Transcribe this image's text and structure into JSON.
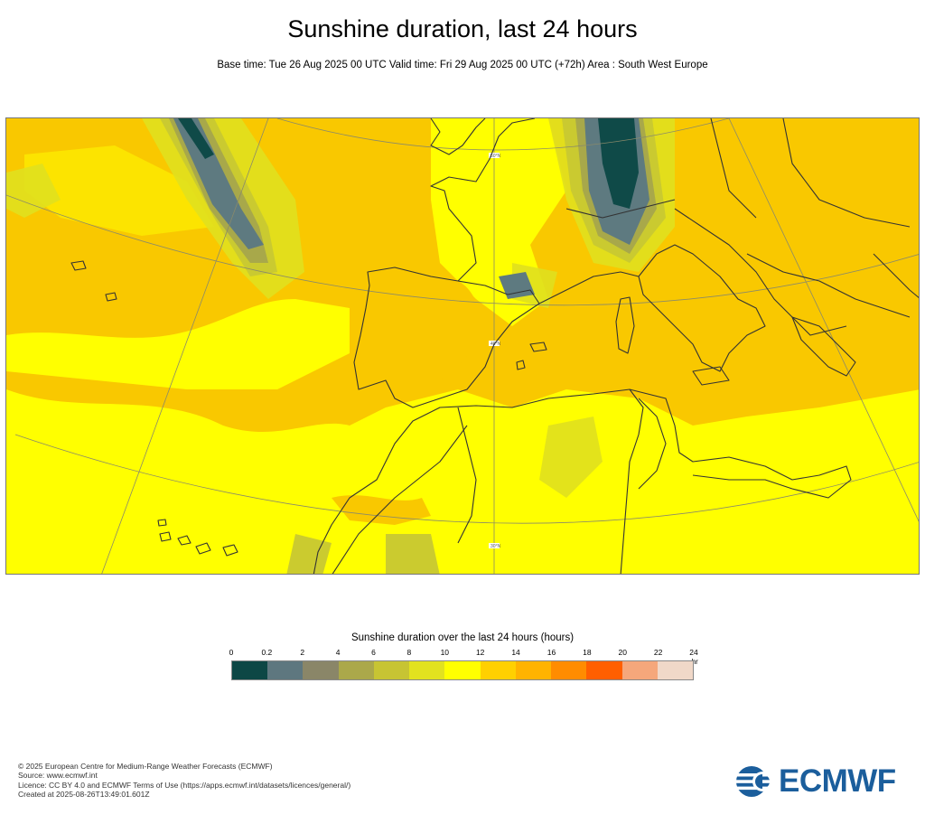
{
  "header": {
    "title": "Sunshine duration, last 24 hours",
    "subtitle": "Base time: Tue 26 Aug 2025 00 UTC Valid time: Fri 29 Aug 2025 00 UTC (+72h) Area : South West Europe"
  },
  "map": {
    "lat_labels": [
      "50°N",
      "40°N",
      "30°N"
    ],
    "colors": {
      "sea_orange": "#f9c800",
      "land_yellow": "#ffff00",
      "cloud_light": "#e0e01e",
      "cloud_mid": "#c8c832",
      "cloud_grey": "#a8a84a",
      "cloud_dark": "#5e7a80",
      "cloud_darkest": "#0f4a48",
      "coast": "#333333",
      "grid": "#8a8a6a"
    }
  },
  "legend": {
    "title": "Sunshine duration over the last 24 hours (hours)",
    "unit": "-hr",
    "ticks": [
      "0",
      "0.2",
      "2",
      "4",
      "6",
      "8",
      "10",
      "12",
      "14",
      "16",
      "18",
      "20",
      "22",
      "24"
    ],
    "colors": [
      "#0d4745",
      "#5e777f",
      "#8a8668",
      "#aba84a",
      "#c7c433",
      "#e2e21f",
      "#ffff00",
      "#ffd000",
      "#ffb300",
      "#ff8c00",
      "#ff5f00",
      "#f5a77b",
      "#f0d8c8"
    ]
  },
  "footer": {
    "lines": [
      "© 2025 European Centre for Medium-Range Weather Forecasts (ECMWF)",
      "Source: www.ecmwf.int",
      "Licence: CC BY 4.0 and ECMWF Terms of Use (https://apps.ecmwf.int/datasets/licences/general/)",
      "Created at 2025-08-26T13:49:01.601Z"
    ]
  },
  "logo": {
    "text": "ECMWF"
  }
}
